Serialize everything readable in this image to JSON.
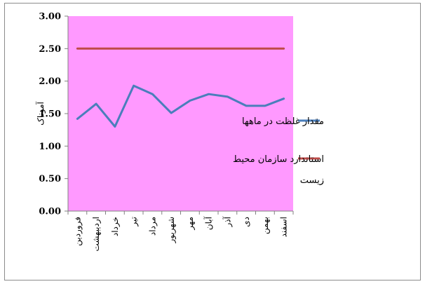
{
  "chart_data": {
    "type": "line",
    "ylabel": "آموناک",
    "ylim": [
      0,
      3
    ],
    "y_ticks": [
      "0.00",
      "0.50",
      "1.00",
      "1.50",
      "2.00",
      "2.50",
      "3.00"
    ],
    "categories": [
      "فروردین",
      "اردیبهشت",
      "خرداد",
      "تیر",
      "مرداد",
      "شهریور",
      "مهر",
      "آبان",
      "آذر",
      "دی",
      "بهمن",
      "اسفند"
    ],
    "series": [
      {
        "name": "مقدار غلظت در ماهها",
        "color": "#4a7ebb",
        "values": [
          1.42,
          1.65,
          1.3,
          1.93,
          1.8,
          1.51,
          1.7,
          1.8,
          1.76,
          1.62,
          1.62,
          1.73
        ]
      },
      {
        "name": "استاندارد سازمان محیط زیست",
        "legend_lines": [
          "استاندارد سازمان محیط",
          "زیست"
        ],
        "color": "#be4b48",
        "values": [
          2.5,
          2.5,
          2.5,
          2.5,
          2.5,
          2.5,
          2.5,
          2.5,
          2.5,
          2.5,
          2.5,
          2.5
        ]
      }
    ],
    "plot_background": "#ff99ff",
    "grid": false,
    "legend_position": "right"
  }
}
